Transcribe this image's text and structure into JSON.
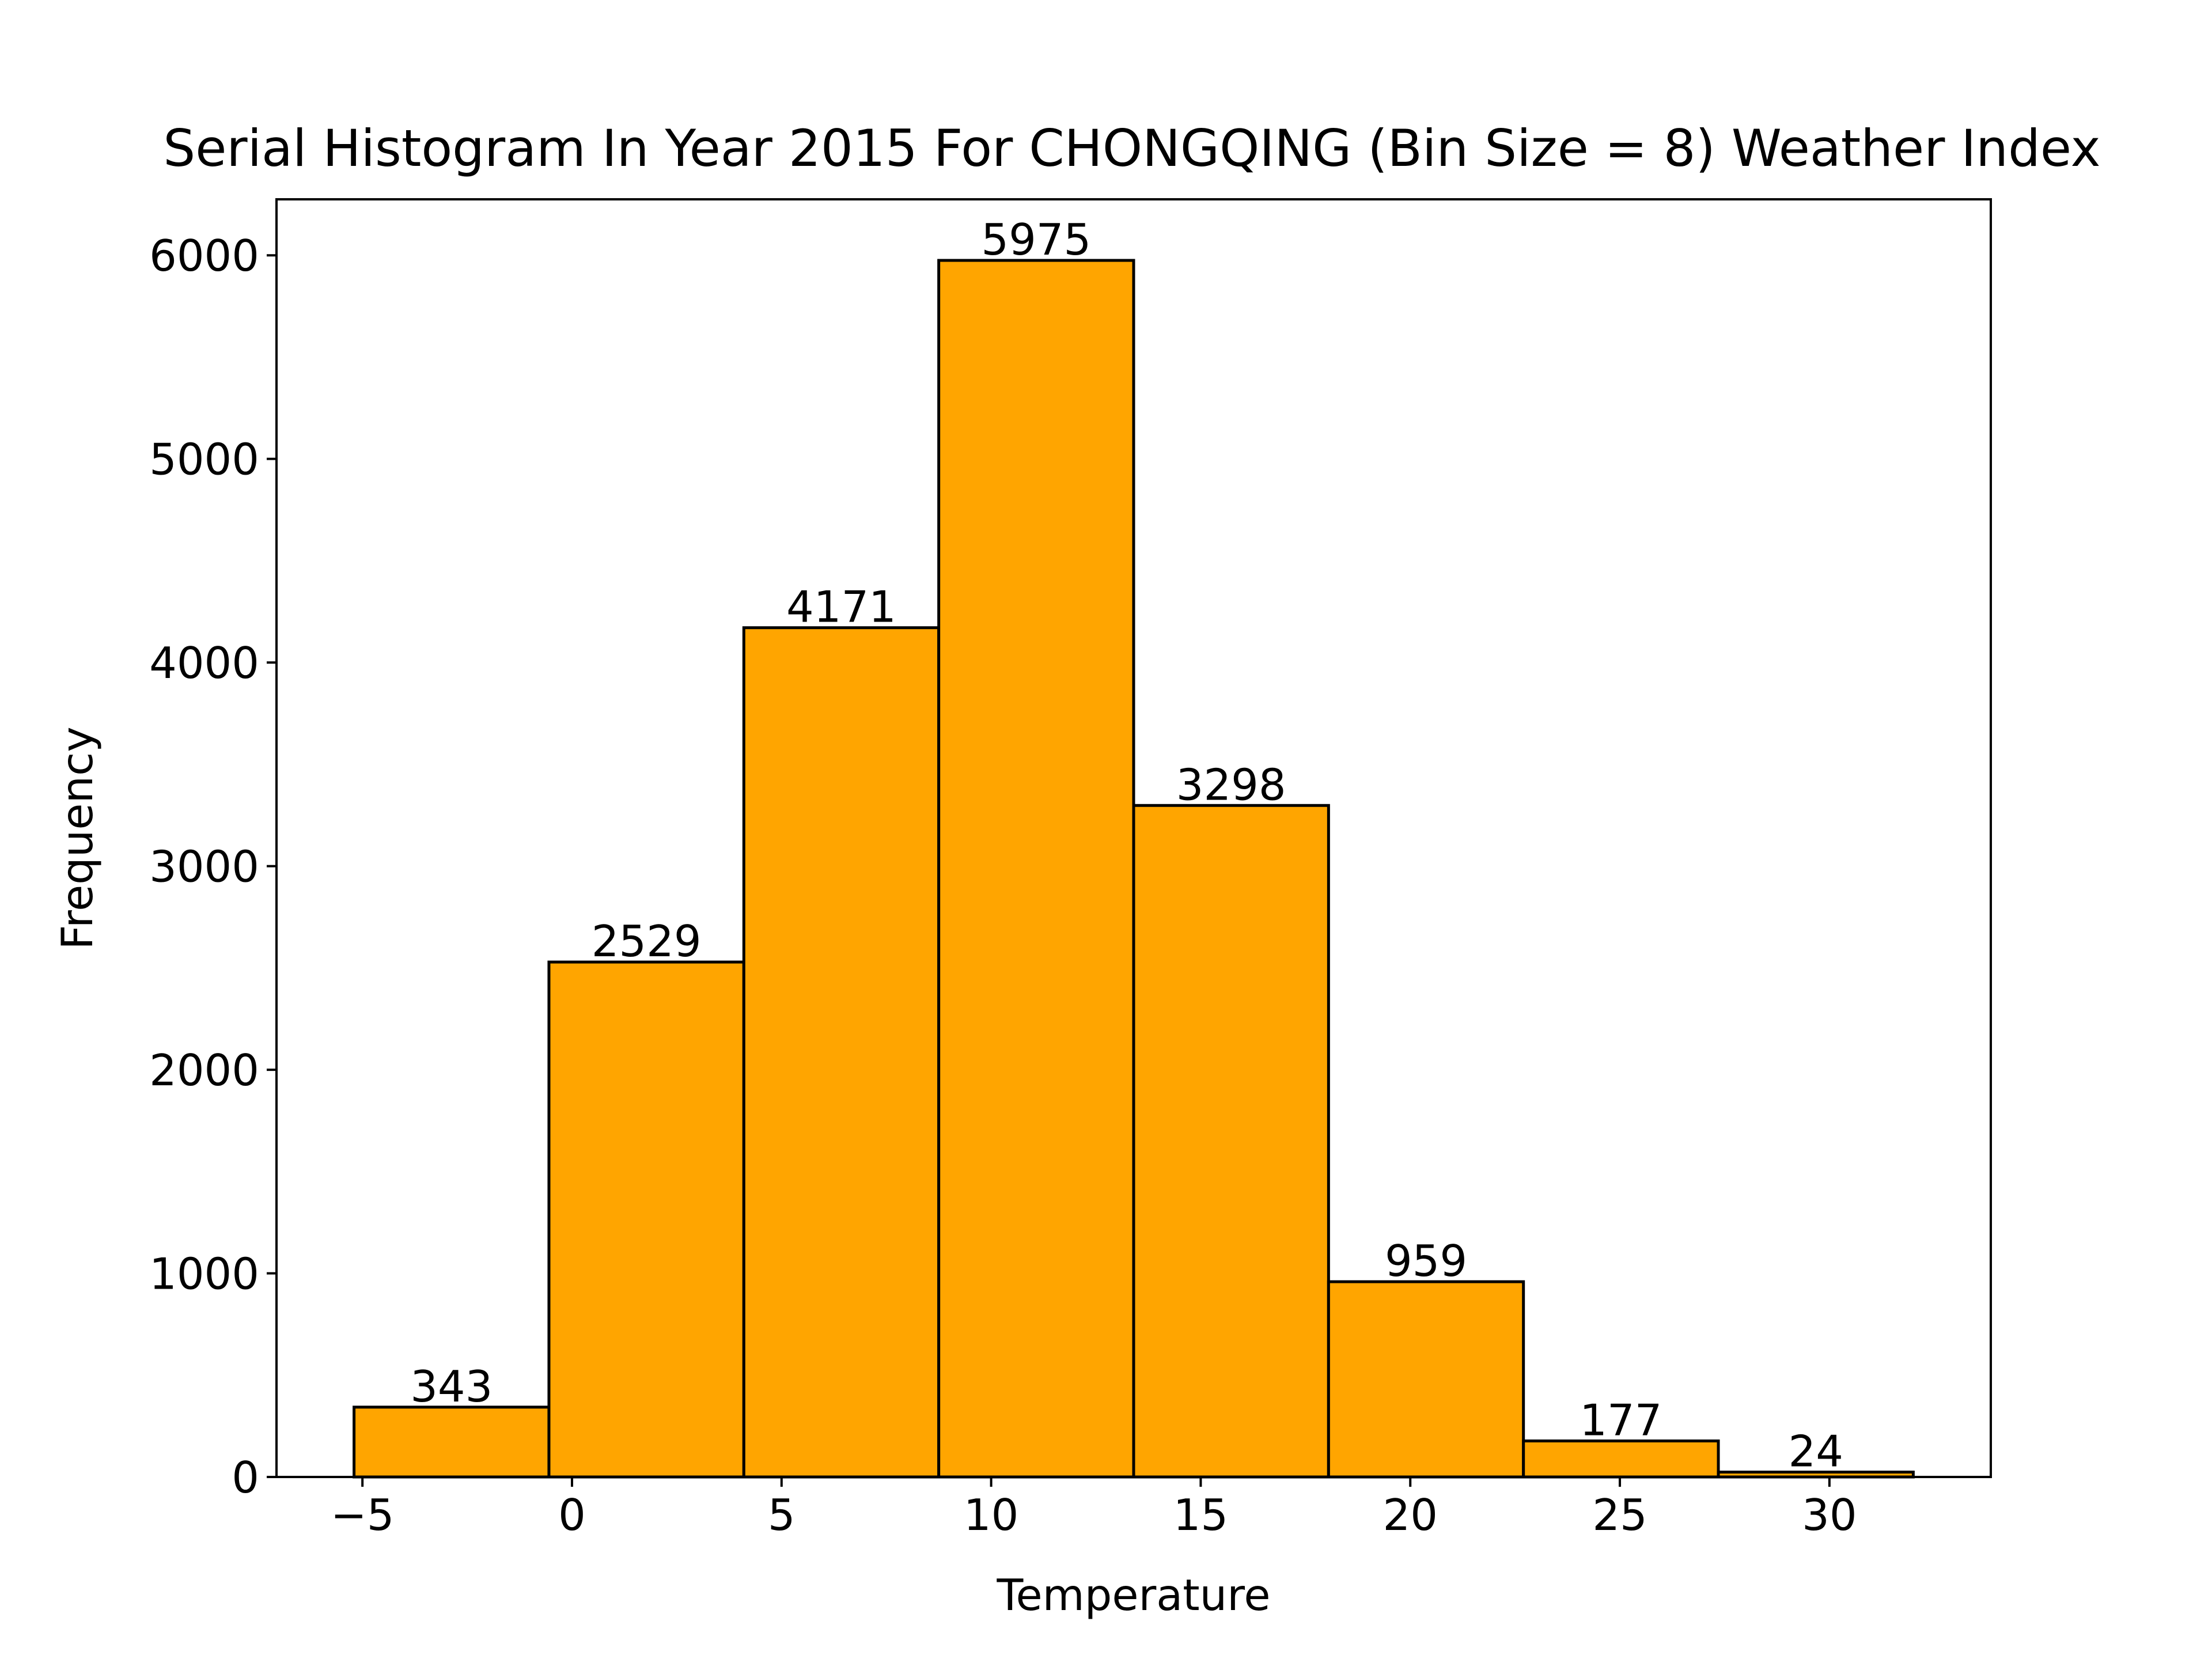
{
  "chart_data": {
    "type": "bar",
    "title": "Serial Histogram In Year 2015 For CHONGQING (Bin Size = 8) Weather Index",
    "xlabel": "Temperature",
    "ylabel": "Frequency",
    "bin_edges": [
      -5.2,
      -0.55,
      4.1,
      8.75,
      13.4,
      18.05,
      22.7,
      27.35,
      32.0
    ],
    "values": [
      343,
      2529,
      4171,
      5975,
      3298,
      959,
      177,
      24
    ],
    "data_labels": [
      "343",
      "2529",
      "4171",
      "5975",
      "3298",
      "959",
      "177",
      "24"
    ],
    "xlim": [
      -7.05,
      33.85
    ],
    "ylim": [
      0,
      6275
    ],
    "x_ticks": [
      -5,
      0,
      5,
      10,
      15,
      20,
      25,
      30
    ],
    "x_tick_labels": [
      "−5",
      "0",
      "5",
      "10",
      "15",
      "20",
      "25",
      "30"
    ],
    "y_ticks": [
      0,
      1000,
      2000,
      3000,
      4000,
      5000,
      6000
    ],
    "y_tick_labels": [
      "0",
      "1000",
      "2000",
      "3000",
      "4000",
      "5000",
      "6000"
    ],
    "bar_color": "#ffa500",
    "edge_color": "#000000",
    "grid": false,
    "legend": "none"
  }
}
